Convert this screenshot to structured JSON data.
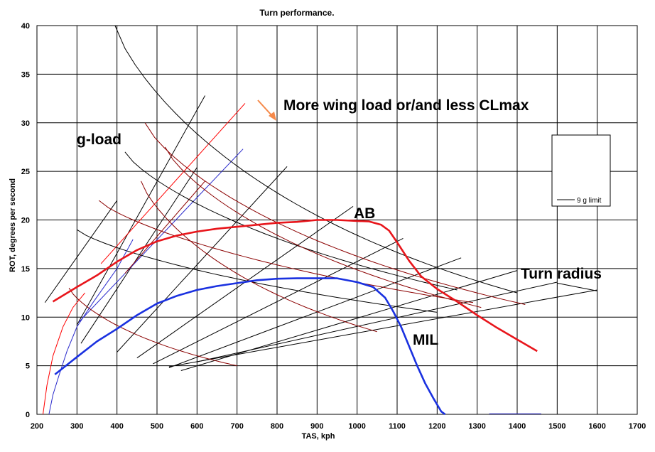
{
  "chart_data": {
    "type": "line",
    "title": "Turn performance.",
    "xlabel": "TAS, kph",
    "ylabel": "ROT, degrees per second",
    "xlim": [
      200,
      1700
    ],
    "ylim": [
      0,
      40
    ],
    "xticks": [
      "200",
      "300",
      "400",
      "500",
      "600",
      "700",
      "800",
      "900",
      "1000",
      "1100",
      "1200",
      "1300",
      "1400",
      "1500",
      "1600",
      "1700"
    ],
    "yticks": [
      "0",
      "5",
      "10",
      "15",
      "20",
      "25",
      "30",
      "35",
      "40"
    ],
    "grid": true,
    "legend": {
      "placement": "right",
      "entries": [
        {
          "label": "9 g limit",
          "color": "#000000"
        }
      ]
    },
    "annotations": {
      "wing": "More wing load or/and less CLmax",
      "gload": "g-load",
      "ab": "AB",
      "radius": "Turn radius",
      "mil": "MIL"
    },
    "colors": {
      "ab": "#e8151b",
      "mil": "#1a31e0",
      "grid": "#000000",
      "arrow": "#f5894a",
      "red_aux": "#ff0000",
      "dark_red_aux": "#8b0000",
      "blue_aux": "#2a2acc"
    },
    "series": [
      {
        "name": "AB",
        "color": "#e8151b",
        "x": [
          240,
          300,
          350,
          400,
          450,
          500,
          550,
          600,
          650,
          700,
          750,
          800,
          850,
          900,
          950,
          1000,
          1030,
          1060,
          1080,
          1100,
          1130,
          1160,
          1200,
          1250,
          1300,
          1350,
          1400,
          1450
        ],
        "y": [
          11.6,
          13.1,
          14.3,
          15.7,
          16.9,
          17.8,
          18.4,
          18.8,
          19.1,
          19.3,
          19.5,
          19.7,
          19.8,
          20.0,
          20.0,
          19.9,
          19.85,
          19.5,
          18.9,
          17.7,
          15.8,
          14.2,
          12.9,
          11.6,
          10.2,
          8.9,
          7.7,
          6.5
        ]
      },
      {
        "name": "MIL",
        "color": "#1a31e0",
        "x": [
          245,
          300,
          350,
          400,
          450,
          500,
          550,
          600,
          650,
          700,
          750,
          800,
          850,
          900,
          950,
          1000,
          1040,
          1070,
          1090,
          1110,
          1130,
          1150,
          1170,
          1190,
          1210,
          1220
        ],
        "y": [
          4.1,
          5.9,
          7.5,
          8.8,
          10.2,
          11.4,
          12.2,
          12.8,
          13.2,
          13.5,
          13.8,
          13.95,
          14.0,
          14.0,
          14.0,
          13.6,
          13.1,
          12.0,
          10.6,
          9.0,
          7.0,
          5.0,
          3.2,
          1.7,
          0.3,
          0.0
        ]
      }
    ]
  }
}
